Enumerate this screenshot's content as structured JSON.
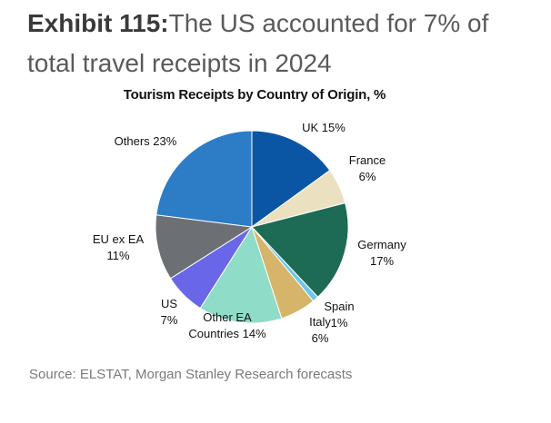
{
  "exhibit": {
    "number": "Exhibit 115:",
    "headline": "The US accounted for 7% of total travel receipts in 2024"
  },
  "source": "Source: ELSTAT, Morgan Stanley Research forecasts",
  "chart_data": {
    "type": "pie",
    "title": "Tourism Receipts by Country of Origin, %",
    "slices": [
      {
        "label": "UK",
        "value": 15,
        "display": "UK 15%",
        "color": "#0b56a4"
      },
      {
        "label": "France",
        "value": 6,
        "display": "France\n6%",
        "color": "#ebe0c0"
      },
      {
        "label": "Germany",
        "value": 17,
        "display": "Germany\n17%",
        "color": "#1e6b55"
      },
      {
        "label": "Spain",
        "value": 1,
        "display": "Spain\n1%",
        "color": "#6fc6e6"
      },
      {
        "label": "Italy",
        "value": 6,
        "display": "Italy\n6%",
        "color": "#d6b56a"
      },
      {
        "label": "Other EA Countries",
        "value": 14,
        "display": "Other EA\nCountries 14%",
        "color": "#8fdcc8"
      },
      {
        "label": "US",
        "value": 7,
        "display": "US\n7%",
        "color": "#6a66e8"
      },
      {
        "label": "EU ex EA",
        "value": 11,
        "display": "EU ex EA\n11%",
        "color": "#6c7075"
      },
      {
        "label": "Others",
        "value": 23,
        "display": "Others 23%",
        "color": "#2d7cc6"
      }
    ]
  }
}
